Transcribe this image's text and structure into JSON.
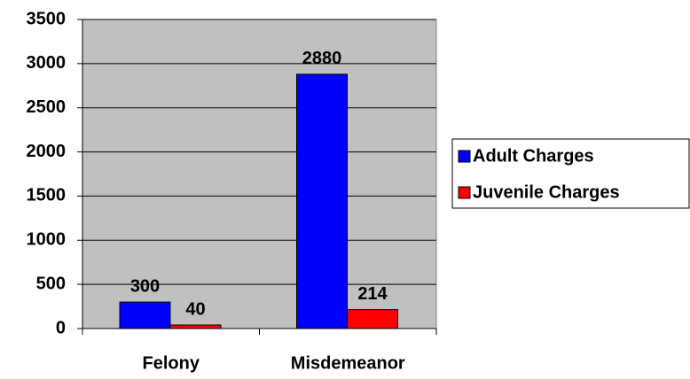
{
  "chart_data": {
    "type": "bar",
    "categories": [
      "Felony",
      "Misdemeanor"
    ],
    "series": [
      {
        "name": "Adult Charges",
        "color": "#0000ff",
        "values": [
          300,
          2880
        ]
      },
      {
        "name": "Juvenile Charges",
        "color": "#ff0000",
        "values": [
          40,
          214
        ]
      }
    ],
    "ylim": [
      0,
      3500
    ],
    "yticks": [
      0,
      500,
      1000,
      1500,
      2000,
      2500,
      3000,
      3500
    ],
    "grid": true,
    "legend": "right",
    "plot_background": "#c0c0c0"
  }
}
